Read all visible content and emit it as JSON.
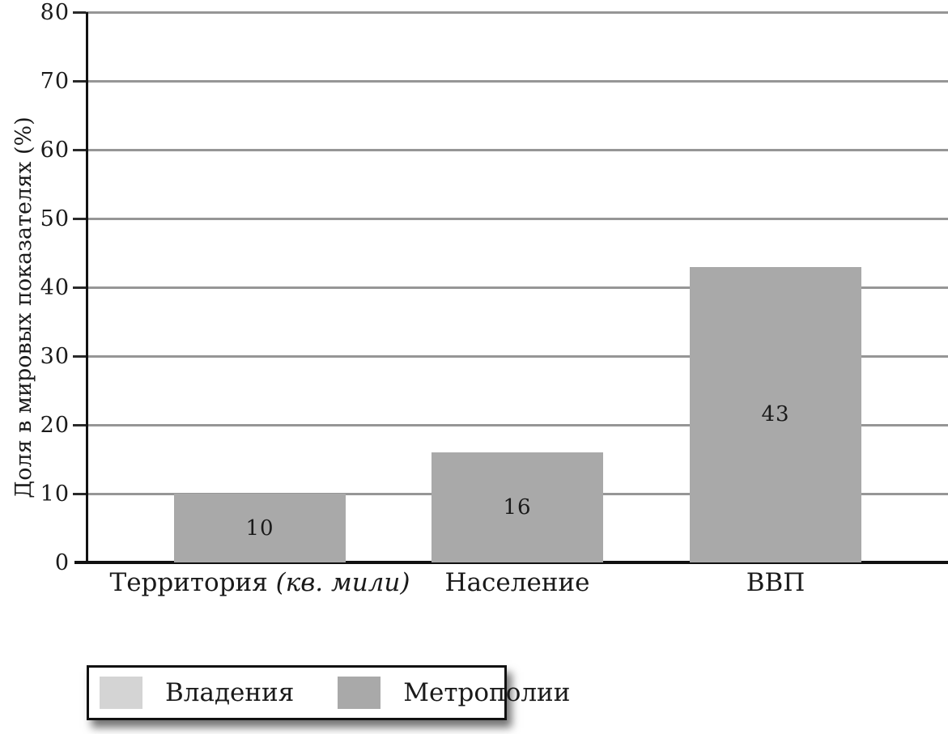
{
  "chart_data": {
    "type": "bar",
    "title": "",
    "ylabel": "Доля в мировых показателях (%)",
    "xlabel": "",
    "ylim": [
      0,
      80
    ],
    "yticks": [
      0,
      10,
      20,
      30,
      40,
      50,
      60,
      70,
      80
    ],
    "grid": true,
    "categories": [
      "Территория (кв. мили)",
      "Население",
      "ВВП"
    ],
    "categories_rich": [
      {
        "roman": "Территория ",
        "italic": "(кв. мили)"
      },
      {
        "roman": "Население",
        "italic": ""
      },
      {
        "roman": "ВВП",
        "italic": ""
      }
    ],
    "series": [
      {
        "name": "Метрополии",
        "color": "#a9a9a9",
        "values": [
          10,
          16,
          43
        ]
      }
    ],
    "value_labels": [
      "10",
      "16",
      "43"
    ],
    "legend": {
      "position": "bottom-left",
      "entries": [
        {
          "label": "Владения",
          "color": "#d4d4d4"
        },
        {
          "label": "Метрополии",
          "color": "#a9a9a9"
        }
      ]
    }
  },
  "colors": {
    "background": "#ffffff",
    "gridline": "#969696",
    "axis": "#111111",
    "text": "#1a1a1a",
    "bar": "#a9a9a9",
    "legend_light": "#d4d4d4",
    "legend_dark": "#a9a9a9"
  }
}
